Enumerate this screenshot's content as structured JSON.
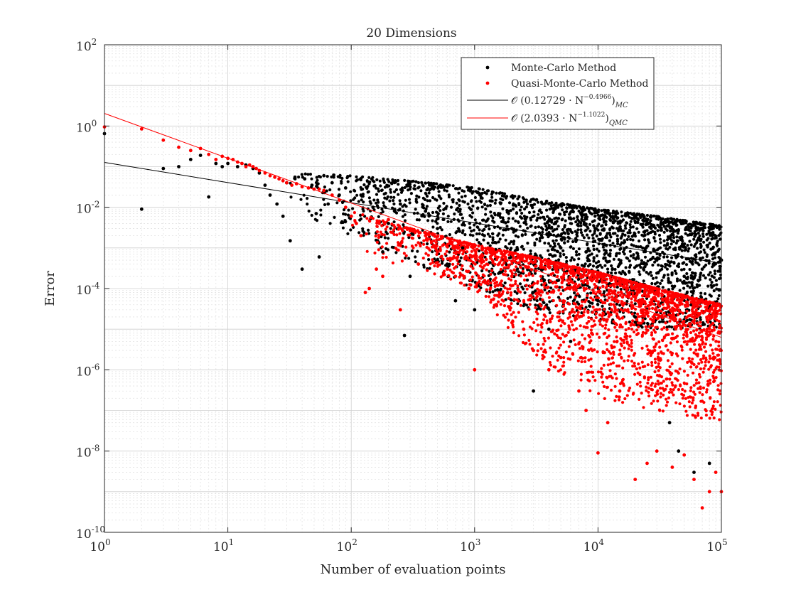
{
  "chart_data": {
    "type": "scatter",
    "title": "20 Dimensions",
    "xlabel": "Number of evaluation points",
    "ylabel": "Error",
    "xscale": "log",
    "yscale": "log",
    "xlim": [
      1,
      100000
    ],
    "ylim": [
      1e-10,
      100
    ],
    "grid": true,
    "minor_grid": true,
    "legend_position": "top-right",
    "x_ticks": [
      {
        "value": 1,
        "base": "10",
        "exp": "0"
      },
      {
        "value": 10,
        "base": "10",
        "exp": "1"
      },
      {
        "value": 100,
        "base": "10",
        "exp": "2"
      },
      {
        "value": 1000,
        "base": "10",
        "exp": "3"
      },
      {
        "value": 10000,
        "base": "10",
        "exp": "4"
      },
      {
        "value": 100000,
        "base": "10",
        "exp": "5"
      }
    ],
    "y_ticks": [
      {
        "value": 1e-10,
        "base": "10",
        "exp": "-10"
      },
      {
        "value": 1e-08,
        "base": "10",
        "exp": "-8"
      },
      {
        "value": 1e-06,
        "base": "10",
        "exp": "-6"
      },
      {
        "value": 0.0001,
        "base": "10",
        "exp": "-4"
      },
      {
        "value": 0.01,
        "base": "10",
        "exp": "-2"
      },
      {
        "value": 1,
        "base": "10",
        "exp": "0"
      },
      {
        "value": 100,
        "base": "10",
        "exp": "2"
      }
    ],
    "series": [
      {
        "name": "Monte-Carlo Method",
        "kind": "scatter",
        "color": "#000000",
        "points": [
          [
            1,
            0.65
          ],
          [
            2,
            0.009
          ],
          [
            3,
            0.09
          ],
          [
            4,
            0.1
          ],
          [
            5,
            0.15
          ],
          [
            6,
            0.19
          ],
          [
            7,
            0.018
          ],
          [
            8,
            0.12
          ],
          [
            9,
            0.1
          ],
          [
            10,
            0.12
          ],
          [
            12,
            0.1
          ],
          [
            14,
            0.11
          ],
          [
            16,
            0.09
          ],
          [
            18,
            0.07
          ],
          [
            20,
            0.035
          ],
          [
            22,
            0.02
          ],
          [
            25,
            0.012
          ],
          [
            28,
            0.006
          ],
          [
            30,
            0.04
          ],
          [
            32,
            0.0015
          ],
          [
            35,
            0.055
          ],
          [
            40,
            0.0003
          ],
          [
            42,
            0.05
          ],
          [
            48,
            0.035
          ],
          [
            52,
            0.007
          ],
          [
            55,
            0.0006
          ],
          [
            60,
            0.06
          ],
          [
            65,
            0.012
          ],
          [
            70,
            0.04
          ],
          [
            80,
            0.02
          ],
          [
            90,
            0.03
          ],
          [
            100,
            0.006
          ],
          [
            120,
            0.02
          ],
          [
            150,
            0.01
          ],
          [
            180,
            0.0008
          ],
          [
            200,
            0.004
          ],
          [
            250,
            0.012
          ],
          [
            270,
            7e-06
          ],
          [
            300,
            0.0002
          ],
          [
            400,
            0.008
          ],
          [
            500,
            0.003
          ],
          [
            600,
            0.0004
          ],
          [
            700,
            5e-05
          ],
          [
            800,
            0.001
          ],
          [
            1000,
            3e-05
          ],
          [
            1200,
            0.002
          ],
          [
            1500,
            4e-05
          ],
          [
            2000,
            0.003
          ],
          [
            3000,
            3e-07
          ],
          [
            4000,
            1e-05
          ],
          [
            5000,
            0.001
          ],
          [
            6000,
            5e-06
          ],
          [
            8000,
            0.0008
          ],
          [
            10000,
            5e-05
          ],
          [
            15000,
            0.0004
          ],
          [
            20000,
            2e-05
          ],
          [
            30000,
            0.0005
          ],
          [
            38000,
            5e-08
          ],
          [
            45000,
            1e-08
          ],
          [
            50000,
            0.0002
          ],
          [
            60000,
            3e-09
          ],
          [
            70000,
            0.0003
          ],
          [
            80000,
            5e-09
          ],
          [
            100000,
            0.0005
          ]
        ],
        "band": {
          "description": "dense cloud of points between the lower and upper envelopes",
          "x": [
            30,
            100,
            300,
            1000,
            3000,
            10000,
            30000,
            100000
          ],
          "upper": [
            0.07,
            0.06,
            0.045,
            0.03,
            0.016,
            0.009,
            0.006,
            0.0035
          ],
          "lower": [
            0.01,
            0.002,
            0.0004,
            0.0001,
            3e-05,
            1.5e-05,
            1e-05,
            1e-05
          ]
        }
      },
      {
        "name": "Quasi-Monte-Carlo Method",
        "kind": "scatter",
        "color": "#ff0000",
        "points": [
          [
            1,
            0.95
          ],
          [
            2,
            0.85
          ],
          [
            3,
            0.45
          ],
          [
            4,
            0.3
          ],
          [
            5,
            0.25
          ],
          [
            6,
            0.28
          ],
          [
            7,
            0.2
          ],
          [
            8,
            0.15
          ],
          [
            9,
            0.18
          ],
          [
            10,
            0.16
          ],
          [
            11,
            0.15
          ],
          [
            12,
            0.13
          ],
          [
            13,
            0.12
          ],
          [
            14,
            0.1
          ],
          [
            15,
            0.11
          ],
          [
            16,
            0.1
          ],
          [
            17,
            0.09
          ],
          [
            18,
            0.08
          ],
          [
            20,
            0.07
          ],
          [
            22,
            0.06
          ],
          [
            24,
            0.055
          ],
          [
            26,
            0.05
          ],
          [
            28,
            0.045
          ],
          [
            30,
            0.04
          ],
          [
            33,
            0.035
          ],
          [
            36,
            0.038
          ],
          [
            40,
            0.032
          ],
          [
            45,
            0.03
          ],
          [
            50,
            0.028
          ],
          [
            55,
            0.028
          ],
          [
            60,
            0.026
          ],
          [
            70,
            0.02
          ],
          [
            80,
            0.015
          ],
          [
            90,
            0.01
          ],
          [
            100,
            0.006
          ],
          [
            110,
            0.004
          ],
          [
            120,
            0.002
          ],
          [
            130,
            8e-05
          ],
          [
            140,
            0.0001
          ],
          [
            160,
            0.0003
          ],
          [
            180,
            0.0002
          ],
          [
            200,
            0.005
          ],
          [
            250,
            3e-05
          ],
          [
            300,
            0.003
          ],
          [
            350,
            0.0004
          ],
          [
            400,
            0.002
          ],
          [
            500,
            0.0008
          ],
          [
            600,
            0.0003
          ],
          [
            700,
            0.0002
          ],
          [
            900,
            0.0001
          ],
          [
            1000,
            1e-06
          ],
          [
            1500,
            4e-05
          ],
          [
            2000,
            0.0002
          ],
          [
            2500,
            1e-05
          ],
          [
            3000,
            3e-06
          ],
          [
            4000,
            1e-06
          ],
          [
            5000,
            2e-06
          ],
          [
            7000,
            3e-07
          ],
          [
            8000,
            1e-07
          ],
          [
            10000,
            9e-09
          ],
          [
            12000,
            5e-08
          ],
          [
            15000,
            3e-07
          ],
          [
            20000,
            2e-09
          ],
          [
            25000,
            5e-09
          ],
          [
            30000,
            1e-08
          ],
          [
            40000,
            4e-09
          ],
          [
            50000,
            8e-09
          ],
          [
            60000,
            2e-09
          ],
          [
            70000,
            4e-10
          ],
          [
            80000,
            1e-09
          ],
          [
            90000,
            3e-09
          ],
          [
            100000,
            1e-09
          ]
        ],
        "band": {
          "description": "dense cloud of points between the lower and upper envelopes",
          "x": [
            100,
            300,
            1000,
            3000,
            10000,
            30000,
            100000
          ],
          "upper": [
            0.008,
            0.003,
            0.0012,
            0.0006,
            0.00025,
            0.0001,
            4e-05
          ],
          "lower": [
            0.001,
            0.0003,
            0.0001,
            2e-06,
            2e-07,
            1e-07,
            5e-08
          ]
        }
      },
      {
        "name": "fit_mc",
        "kind": "line",
        "color": "#000000",
        "coefficient": 0.12729,
        "exponent": -0.4966
      },
      {
        "name": "fit_qmc",
        "kind": "line",
        "color": "#ff0000",
        "coefficient": 2.0393,
        "exponent": -1.1022
      }
    ],
    "legend": [
      {
        "kind": "marker",
        "color": "#000000",
        "label": "Monte-Carlo Method"
      },
      {
        "kind": "marker",
        "color": "#ff0000",
        "label": "Quasi-Monte-Carlo Method"
      },
      {
        "kind": "line",
        "color": "#000000",
        "pre": "𝒪 (0.12729 · N",
        "exp": "−0.4966",
        "post": ")",
        "sub": "MC"
      },
      {
        "kind": "line",
        "color": "#ff0000",
        "pre": "𝒪 (2.0393 · N",
        "exp": "−1.1022",
        "post": ")",
        "sub": "QMC"
      }
    ]
  }
}
